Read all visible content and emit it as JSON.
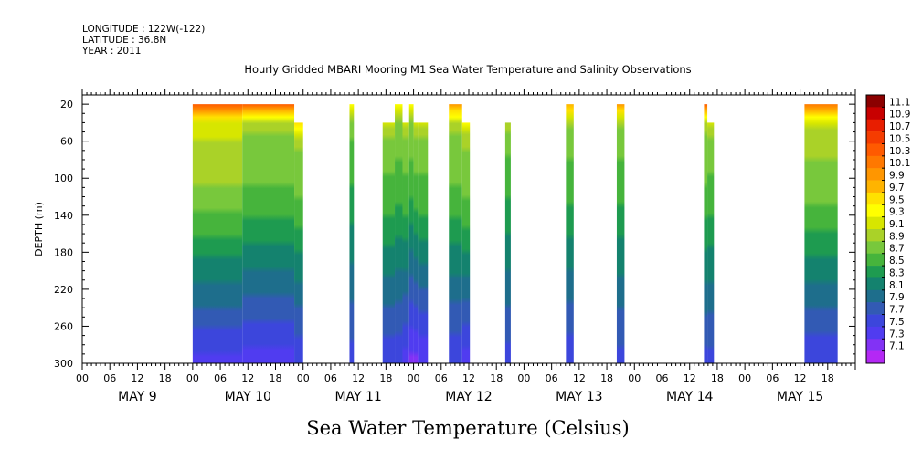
{
  "header": {
    "longitude": "LONGITUDE : 122W(-122)",
    "latitude": "LATITUDE : 36.8N",
    "year": "YEAR : 2011"
  },
  "title": "Hourly Gridded MBARI Mooring M1 Sea Water Temperature and Salinity Observations",
  "chart_data": {
    "type": "heatmap",
    "title": "Hourly Gridded MBARI Mooring M1 Sea Water Temperature and Salinity Observations",
    "xlabel": "",
    "ylabel": "DEPTH (m)",
    "variable_label": "Sea Water Temperature (Celsius)",
    "x_range_days": [
      9,
      16
    ],
    "x_unit": "day of May 2011 (hours)",
    "hour_ticks": [
      "00",
      "06",
      "12",
      "18"
    ],
    "day_labels": [
      "MAY  9",
      "MAY 10",
      "MAY 11",
      "MAY 12",
      "MAY 13",
      "MAY 14",
      "MAY 15"
    ],
    "day_label_centers": [
      9.5,
      10.5,
      11.5,
      12.5,
      13.5,
      14.5,
      15.5
    ],
    "y_range": [
      10,
      300
    ],
    "y_inverted": true,
    "y_ticks": [
      20,
      60,
      100,
      140,
      180,
      220,
      260,
      300
    ],
    "colorbar": {
      "levels": [
        11.1,
        10.9,
        10.7,
        10.5,
        10.3,
        10.1,
        9.9,
        9.7,
        9.5,
        9.3,
        9.1,
        8.9,
        8.7,
        8.5,
        8.3,
        8.1,
        7.9,
        7.7,
        7.5,
        7.3,
        7.1
      ],
      "colors": [
        "#8b0000",
        "#c80000",
        "#e81e00",
        "#f53c00",
        "#ff5a00",
        "#ff7800",
        "#ff9600",
        "#ffb400",
        "#ffe100",
        "#ffff00",
        "#d7e600",
        "#aad228",
        "#78c83c",
        "#46b43c",
        "#1e9b50",
        "#14826e",
        "#1e6e8c",
        "#325ab4",
        "#3c46dc",
        "#503cf0",
        "#8232f5",
        "#b428f5"
      ]
    },
    "data_segments": [
      {
        "start": 10.0,
        "end": 10.45,
        "top_depth": 20,
        "surface_temp": 10.4,
        "mid_temp": 8.9,
        "bottom_temp": 7.4
      },
      {
        "start": 10.45,
        "end": 10.92,
        "top_depth": 20,
        "surface_temp": 10.3,
        "mid_temp": 8.7,
        "bottom_temp": 7.4
      },
      {
        "start": 10.92,
        "end": 11.0,
        "top_depth": 40,
        "surface_temp": 9.5,
        "mid_temp": 8.7,
        "bottom_temp": 7.5
      },
      {
        "start": 11.42,
        "end": 11.46,
        "top_depth": 20,
        "surface_temp": 9.4,
        "mid_temp": 8.5,
        "bottom_temp": 7.6
      },
      {
        "start": 11.72,
        "end": 11.83,
        "top_depth": 40,
        "surface_temp": 9.1,
        "mid_temp": 8.6,
        "bottom_temp": 7.5
      },
      {
        "start": 11.83,
        "end": 11.9,
        "top_depth": 20,
        "surface_temp": 9.4,
        "mid_temp": 8.6,
        "bottom_temp": 7.5
      },
      {
        "start": 11.9,
        "end": 11.96,
        "top_depth": 40,
        "surface_temp": 9.1,
        "mid_temp": 8.6,
        "bottom_temp": 7.4
      },
      {
        "start": 11.96,
        "end": 12.0,
        "top_depth": 20,
        "surface_temp": 9.4,
        "mid_temp": 8.6,
        "bottom_temp": 7.2
      },
      {
        "start": 12.0,
        "end": 12.04,
        "top_depth": 40,
        "surface_temp": 9.1,
        "mid_temp": 8.6,
        "bottom_temp": 7.2
      },
      {
        "start": 12.04,
        "end": 12.13,
        "top_depth": 40,
        "surface_temp": 9.1,
        "mid_temp": 8.6,
        "bottom_temp": 7.3
      },
      {
        "start": 12.32,
        "end": 12.44,
        "top_depth": 20,
        "surface_temp": 9.9,
        "mid_temp": 8.7,
        "bottom_temp": 7.5
      },
      {
        "start": 12.44,
        "end": 12.51,
        "top_depth": 40,
        "surface_temp": 9.3,
        "mid_temp": 8.7,
        "bottom_temp": 7.4
      },
      {
        "start": 12.83,
        "end": 12.88,
        "top_depth": 40,
        "surface_temp": 9.0,
        "mid_temp": 8.5,
        "bottom_temp": 7.6
      },
      {
        "start": 13.38,
        "end": 13.45,
        "top_depth": 20,
        "surface_temp": 9.8,
        "mid_temp": 8.6,
        "bottom_temp": 7.5
      },
      {
        "start": 13.84,
        "end": 13.91,
        "top_depth": 20,
        "surface_temp": 10.0,
        "mid_temp": 8.6,
        "bottom_temp": 7.6
      },
      {
        "start": 14.63,
        "end": 14.66,
        "top_depth": 20,
        "surface_temp": 10.3,
        "mid_temp": 8.7,
        "bottom_temp": 7.6
      },
      {
        "start": 14.66,
        "end": 14.72,
        "top_depth": 40,
        "surface_temp": 9.1,
        "mid_temp": 8.6,
        "bottom_temp": 7.6
      },
      {
        "start": 15.54,
        "end": 15.84,
        "top_depth": 20,
        "surface_temp": 10.2,
        "mid_temp": 8.8,
        "bottom_temp": 7.5
      }
    ],
    "grid": false,
    "legend": "colorbar-right"
  }
}
